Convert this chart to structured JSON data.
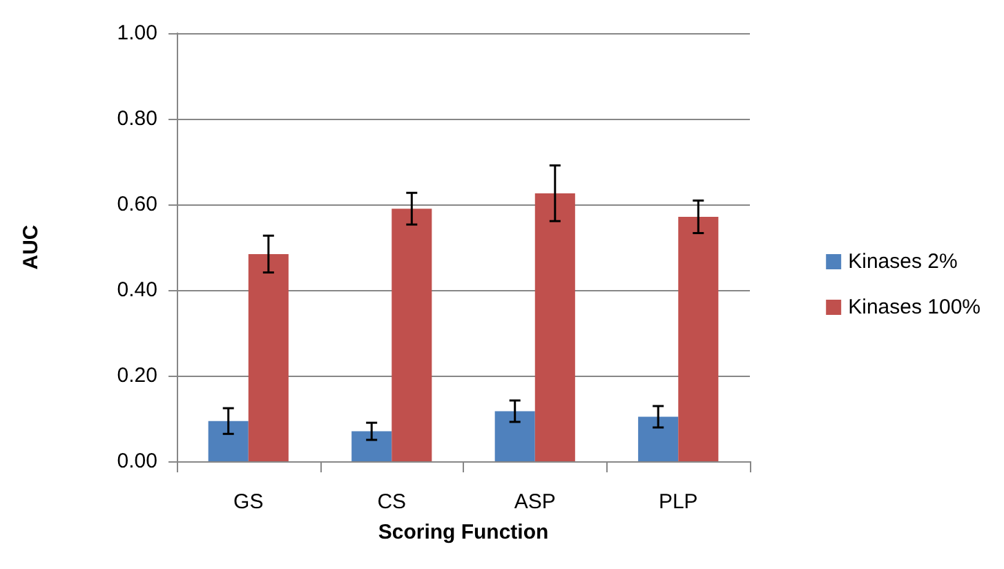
{
  "chart_data": {
    "type": "bar",
    "xlabel": "Scoring Function",
    "ylabel": "AUC",
    "categories": [
      "GS",
      "CS",
      "ASP",
      "PLP"
    ],
    "series": [
      {
        "name": "Kinases 2%",
        "color": "#4f81bd",
        "values": [
          0.094,
          0.07,
          0.117,
          0.104
        ],
        "errors": [
          0.03,
          0.02,
          0.025,
          0.025
        ]
      },
      {
        "name": "Kinases 100%",
        "color": "#c0504d",
        "values": [
          0.484,
          0.59,
          0.626,
          0.571
        ],
        "errors": [
          0.043,
          0.037,
          0.065,
          0.038
        ]
      }
    ],
    "ylim": [
      0,
      1
    ],
    "yticks": [
      {
        "value": 0,
        "label": "0.00"
      },
      {
        "value": 0.2,
        "label": "0.20"
      },
      {
        "value": 0.4,
        "label": "0.40"
      },
      {
        "value": 0.6,
        "label": "0.60"
      },
      {
        "value": 0.8,
        "label": "0.80"
      },
      {
        "value": 1,
        "label": "1.00"
      }
    ],
    "grid": "y",
    "legend": "right"
  }
}
